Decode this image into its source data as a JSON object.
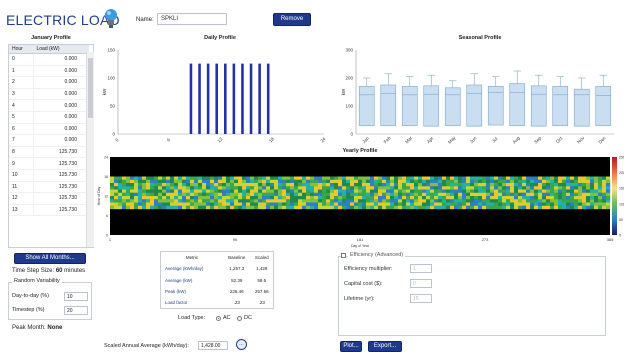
{
  "app": {
    "title": "ELECTRIC LOAD"
  },
  "header": {
    "name_label": "Name:",
    "name_value": "SPKLI",
    "remove_label": "Remove"
  },
  "january_profile": {
    "title": "January Profile",
    "columns": [
      "Hour",
      "Load (kW)"
    ],
    "rows": [
      [
        "0",
        "0.000"
      ],
      [
        "1",
        "0.000"
      ],
      [
        "2",
        "0.000"
      ],
      [
        "3",
        "0.000"
      ],
      [
        "4",
        "0.000"
      ],
      [
        "5",
        "0.000"
      ],
      [
        "6",
        "0.000"
      ],
      [
        "7",
        "0.000"
      ],
      [
        "8",
        "125.730"
      ],
      [
        "9",
        "125.730"
      ],
      [
        "10",
        "125.730"
      ],
      [
        "11",
        "125.730"
      ],
      [
        "12",
        "125.730"
      ],
      [
        "13",
        "125.730"
      ]
    ]
  },
  "show_all_label": "Show All Months...",
  "time_step": {
    "label": "Time Step Size:",
    "value": "60",
    "unit": "minutes"
  },
  "random_variability": {
    "title": "Random Variability",
    "day_to_day_label": "Day-to-day (%)",
    "day_to_day_value": "10",
    "timestep_label": "Timestep (%)",
    "timestep_value": "20"
  },
  "peak_month": {
    "label": "Peak Month:",
    "value": "None"
  },
  "colors": {
    "bar": "#2430a8",
    "box_fill": "#c9def0",
    "box_stroke": "#7fa6c9",
    "brand": "#1f3a8a"
  },
  "chart_data": [
    {
      "type": "bar",
      "title": "Daily Profile",
      "ylabel": "kW",
      "ylim": [
        0,
        150
      ],
      "yticks": [
        "150",
        "100",
        "50",
        "0"
      ],
      "xticks": [
        "0",
        "6",
        "12",
        "18",
        "24"
      ],
      "x": [
        0,
        1,
        2,
        3,
        4,
        5,
        6,
        7,
        8,
        9,
        10,
        11,
        12,
        13,
        14,
        15,
        16,
        17,
        18,
        19,
        20,
        21,
        22,
        23
      ],
      "values": [
        0,
        0,
        0,
        0,
        0,
        0,
        0,
        0,
        125.73,
        125.73,
        125.73,
        125.73,
        125.73,
        125.73,
        125.73,
        125.73,
        125.73,
        125.73,
        0,
        0,
        0,
        0,
        0,
        0
      ]
    },
    {
      "type": "box",
      "title": "Seasonal Profile",
      "ylabel": "kW",
      "ylim": [
        0,
        300
      ],
      "yticks": [
        "300",
        "200",
        "100",
        "0"
      ],
      "categories": [
        "Jan",
        "Feb",
        "Mar",
        "Apr",
        "May",
        "Jun",
        "Jul",
        "Aug",
        "Sep",
        "Oct",
        "Nov",
        "Dec"
      ],
      "series": [
        {
          "stats": [
            [
              0,
              30,
              140,
              170,
              200
            ],
            [
              0,
              30,
              145,
              175,
              215
            ],
            [
              0,
              30,
              140,
              170,
              205
            ],
            [
              0,
              28,
              142,
              172,
              210
            ],
            [
              0,
              30,
              140,
              165,
              190
            ],
            [
              0,
              28,
              145,
              175,
              215
            ],
            [
              0,
              32,
              148,
              170,
              205
            ],
            [
              0,
              30,
              148,
              180,
              225
            ],
            [
              0,
              28,
              142,
              172,
              210
            ],
            [
              0,
              30,
              140,
              170,
              205
            ],
            [
              0,
              28,
              140,
              160,
              200
            ],
            [
              0,
              30,
              138,
              170,
              210
            ]
          ]
        }
      ]
    },
    {
      "type": "heatmap",
      "title": "Yearly Profile",
      "ylabel": "Hour of Day",
      "xlabel": "Day of Year",
      "xticks": [
        "1",
        "90",
        "181",
        "273",
        "365"
      ],
      "yticks": [
        "24",
        "18",
        "12",
        "6",
        "0"
      ],
      "colorbar_ticks": [
        "250",
        "200",
        "150",
        "100",
        "50",
        "0"
      ],
      "active_hours": [
        8,
        17
      ]
    }
  ],
  "metrics_table": {
    "columns": [
      "Metric",
      "Baseline",
      "Scaled"
    ],
    "rows": [
      [
        "Average (kWh/day)",
        "1,257.3",
        "1,428"
      ],
      [
        "Average (kW)",
        "52.39",
        "59.5"
      ],
      [
        "Peak (kW)",
        "226.46",
        "257.56"
      ],
      [
        "Load factor",
        ".23",
        ".23"
      ]
    ]
  },
  "load_type": {
    "label": "Load Type:",
    "options": [
      "AC",
      "DC"
    ],
    "selected": "AC"
  },
  "scaled_annual": {
    "label": "Scaled Annual Average (kWh/day):",
    "value": "1,428.00"
  },
  "efficiency": {
    "title": "Efficiency (Advanced)",
    "fields": [
      {
        "label": "Efficiency multiplier:",
        "value": "1"
      },
      {
        "label": "Capital cost ($):",
        "value": "0"
      },
      {
        "label": "Lifetime (yr):",
        "value": "15"
      }
    ]
  },
  "buttons": {
    "plot": "Plot...",
    "export": "Export..."
  }
}
